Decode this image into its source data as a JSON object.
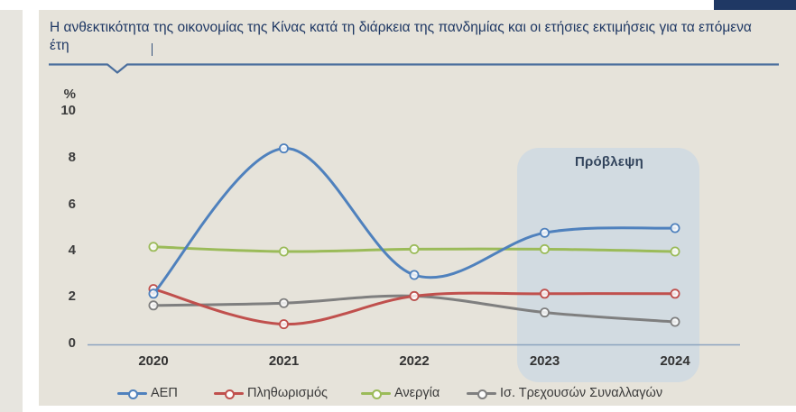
{
  "page": {
    "forecast_label": "Πρόβλεψη"
  },
  "chart_data": {
    "type": "line",
    "title": "Η ανθεκτικότητα της οικονομίας της Κίνας κατά τη διάρκεια της πανδημίας και οι ετήσιες εκτιμήσεις για τα επόμενα έτη",
    "ylabel": "%",
    "ylim": [
      0,
      10
    ],
    "y_ticks": [
      0,
      2,
      4,
      6,
      8,
      10
    ],
    "x": [
      "2020",
      "2021",
      "2022",
      "2023",
      "2024"
    ],
    "annotation": "Πρόβλεψη",
    "forecast_range": [
      "2023",
      "2024"
    ],
    "legend_position": "bottom",
    "grid": false,
    "series": [
      {
        "name": "ΑΕΠ",
        "color": "#4f81bd",
        "values": [
          2.2,
          8.4,
          3.0,
          4.8,
          5.0
        ]
      },
      {
        "name": "Πληθωρισμός",
        "color": "#c0504d",
        "values": [
          2.4,
          0.9,
          2.1,
          2.2,
          2.2
        ]
      },
      {
        "name": "Ανεργία",
        "color": "#9bbb59",
        "values": [
          4.2,
          4.0,
          4.1,
          4.1,
          4.0
        ]
      },
      {
        "name": "Ισ. Τρεχουσών Συναλλαγών",
        "color": "#7f7f7f",
        "values": [
          1.7,
          1.8,
          2.1,
          1.4,
          1.0
        ]
      }
    ],
    "colors": {
      "title_text": "#1f3864",
      "panel_background": "#e6e3da",
      "forecast_box": "#cdd8e2",
      "axis_line": "#8ba3bf",
      "title_rule": "#4a6e9d",
      "header_bar": "#1f3864"
    }
  }
}
